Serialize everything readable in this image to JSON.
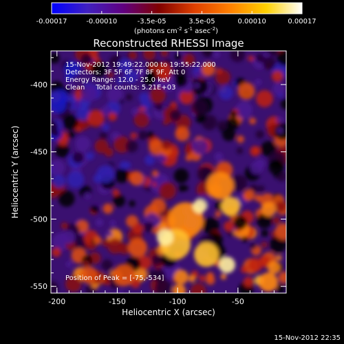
{
  "colorbar": {
    "ticks": [
      "-0.00017",
      "-0.00010",
      "-3.5e-05",
      "3.5e-05",
      "0.00010",
      "0.00017"
    ],
    "units": "(photons cm",
    "units_sup1": "-2",
    "units_mid": " s",
    "units_sup2": "-1",
    "units_mid2": " asec",
    "units_sup3": "-2",
    "units_end": ")",
    "colors": [
      "#0000ff",
      "#4020c0",
      "#600080",
      "#800000",
      "#e04000",
      "#ff8000",
      "#ffd000",
      "#ffffff"
    ]
  },
  "title": "Reconstructed RHESSI Image",
  "annotations": {
    "time": "15-Nov-2012 19:49:22.000 to 19:55:22.000",
    "detectors": "Detectors: 3F 5F 6F 7F 8F 9F, Att 0",
    "energy": "Energy Range: 12.0 - 25.0 keV",
    "clean": "Clean     Total counts: 5.21E+03",
    "peak": "Position of Peak = [-75,-534]"
  },
  "xaxis": {
    "label": "Heliocentric X (arcsec)",
    "ticks": [
      {
        "value": -200,
        "label": "-200"
      },
      {
        "value": -150,
        "label": "-150"
      },
      {
        "value": -100,
        "label": "-100"
      },
      {
        "value": -50,
        "label": "-50"
      }
    ],
    "range": [
      -205,
      -10
    ]
  },
  "yaxis": {
    "label": "Heliocentric Y (arcsec)",
    "ticks": [
      {
        "value": -400,
        "label": "-400"
      },
      {
        "value": -450,
        "label": "-450"
      },
      {
        "value": -500,
        "label": "-500"
      },
      {
        "value": -550,
        "label": "-550"
      }
    ],
    "range": [
      -555,
      -375
    ]
  },
  "footer_timestamp": "15-Nov-2012 22:35"
}
